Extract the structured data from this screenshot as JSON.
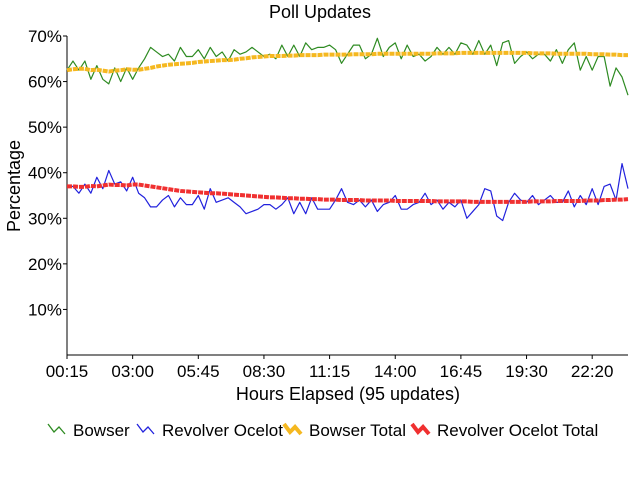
{
  "chart_data": {
    "type": "line",
    "title": "Poll Updates",
    "xlabel": "Hours Elapsed (95 updates)",
    "ylabel": "Percentage",
    "ylim": [
      0,
      70
    ],
    "y_ticks": [
      "10%",
      "20%",
      "30%",
      "40%",
      "50%",
      "60%",
      "70%"
    ],
    "y_tick_values": [
      10,
      20,
      30,
      40,
      50,
      60,
      70
    ],
    "x_ticks": [
      "00:15",
      "03:00",
      "05:45",
      "08:30",
      "11:15",
      "14:00",
      "16:45",
      "19:30",
      "22:20"
    ],
    "x_tick_index": [
      0,
      11,
      22,
      33,
      44,
      55,
      66,
      77,
      88
    ],
    "point_count": 95,
    "grid": false,
    "legend_position": "bottom",
    "series": [
      {
        "name": "Bowser",
        "color": "#2e8b22",
        "style": "thin",
        "values": [
          62.5,
          64.5,
          62.5,
          64.5,
          60.5,
          63.5,
          60.5,
          59.5,
          63.0,
          60.0,
          63.0,
          60.5,
          63.0,
          65.0,
          67.5,
          66.5,
          65.5,
          66.0,
          64.5,
          67.5,
          65.5,
          65.5,
          67.0,
          65.0,
          67.5,
          65.5,
          66.5,
          64.5,
          67.0,
          66.0,
          66.5,
          67.5,
          66.5,
          65.5,
          66.0,
          65.0,
          68.0,
          65.5,
          68.0,
          65.5,
          68.5,
          67.0,
          67.5,
          67.5,
          68.0,
          67.0,
          64.0,
          66.0,
          68.0,
          68.0,
          65.0,
          66.0,
          69.5,
          65.5,
          67.5,
          68.5,
          65.0,
          68.0,
          65.5,
          66.0,
          64.5,
          65.5,
          67.5,
          66.0,
          67.5,
          66.0,
          68.5,
          68.0,
          66.0,
          69.0,
          66.0,
          68.0,
          63.5,
          68.5,
          69.0,
          64.0,
          65.5,
          66.5,
          65.0,
          66.0,
          66.0,
          64.5,
          67.0,
          64.0,
          67.0,
          68.5,
          62.5,
          65.5,
          62.5,
          65.5,
          65.5,
          59.0,
          63.0,
          61.0,
          57.0
        ]
      },
      {
        "name": "Revolver Ocelot",
        "color": "#2222dd",
        "style": "thin",
        "values": [
          37.0,
          37.0,
          35.5,
          37.5,
          35.5,
          39.0,
          36.5,
          40.5,
          37.5,
          38.0,
          36.0,
          39.0,
          35.5,
          34.5,
          32.5,
          32.5,
          34.0,
          35.0,
          32.5,
          34.5,
          33.0,
          33.0,
          35.0,
          32.0,
          36.5,
          33.5,
          34.0,
          34.5,
          33.5,
          32.5,
          31.0,
          31.5,
          32.0,
          33.0,
          33.0,
          32.0,
          33.0,
          34.5,
          31.0,
          33.5,
          31.0,
          34.5,
          32.0,
          32.0,
          32.0,
          34.0,
          36.5,
          33.5,
          33.0,
          34.0,
          32.5,
          34.0,
          31.5,
          33.0,
          33.5,
          35.0,
          32.0,
          32.0,
          33.0,
          33.5,
          35.5,
          33.0,
          34.0,
          32.0,
          33.5,
          32.5,
          34.0,
          30.0,
          31.5,
          33.0,
          36.5,
          36.0,
          30.5,
          29.5,
          33.5,
          35.5,
          34.0,
          33.5,
          35.0,
          33.0,
          34.0,
          35.0,
          33.5,
          33.5,
          36.0,
          32.5,
          35.0,
          33.0,
          36.5,
          33.0,
          37.0,
          37.5,
          34.0,
          42.0,
          36.5
        ]
      },
      {
        "name": "Bowser Total",
        "color": "#f5b820",
        "style": "thick",
        "values": [
          62.5,
          62.7,
          62.8,
          62.8,
          62.5,
          62.6,
          62.4,
          62.2,
          62.4,
          62.5,
          62.7,
          62.6,
          62.6,
          62.8,
          63.0,
          63.3,
          63.5,
          63.7,
          63.8,
          63.9,
          64.0,
          64.1,
          64.3,
          64.4,
          64.5,
          64.6,
          64.7,
          64.7,
          64.8,
          65.0,
          65.1,
          65.3,
          65.4,
          65.5,
          65.6,
          65.6,
          65.6,
          65.7,
          65.7,
          65.8,
          65.8,
          65.8,
          65.8,
          65.9,
          65.9,
          65.9,
          65.9,
          65.9,
          66.0,
          66.0,
          66.0,
          66.0,
          66.1,
          66.1,
          66.1,
          66.1,
          66.1,
          66.1,
          66.1,
          66.1,
          66.1,
          66.1,
          66.2,
          66.2,
          66.2,
          66.2,
          66.3,
          66.3,
          66.3,
          66.3,
          66.3,
          66.3,
          66.3,
          66.3,
          66.3,
          66.3,
          66.3,
          66.3,
          66.2,
          66.2,
          66.2,
          66.2,
          66.1,
          66.1,
          66.1,
          66.1,
          66.1,
          66.1,
          66.0,
          66.0,
          66.0,
          65.9,
          65.9,
          65.8,
          65.8
        ]
      },
      {
        "name": "Revolver Ocelot Total",
        "color": "#f03030",
        "style": "thick",
        "values": [
          37.0,
          37.0,
          36.9,
          36.9,
          37.1,
          37.0,
          37.2,
          37.4,
          37.3,
          37.3,
          37.2,
          37.4,
          37.4,
          37.2,
          37.0,
          36.8,
          36.6,
          36.4,
          36.2,
          36.0,
          35.9,
          35.8,
          35.7,
          35.6,
          35.5,
          35.5,
          35.4,
          35.3,
          35.2,
          35.1,
          35.0,
          34.9,
          34.8,
          34.7,
          34.6,
          34.6,
          34.5,
          34.4,
          34.4,
          34.3,
          34.3,
          34.2,
          34.2,
          34.1,
          34.1,
          34.1,
          34.0,
          34.0,
          34.0,
          34.0,
          33.9,
          33.9,
          33.9,
          33.9,
          33.9,
          33.8,
          33.8,
          33.8,
          33.8,
          33.8,
          33.8,
          33.8,
          33.7,
          33.7,
          33.7,
          33.7,
          33.7,
          33.7,
          33.6,
          33.6,
          33.6,
          33.6,
          33.6,
          33.6,
          33.6,
          33.6,
          33.6,
          33.6,
          33.7,
          33.7,
          33.7,
          33.7,
          33.8,
          33.8,
          33.8,
          33.8,
          33.8,
          33.9,
          33.9,
          33.9,
          34.0,
          34.0,
          34.1,
          34.1,
          34.2
        ]
      }
    ]
  }
}
